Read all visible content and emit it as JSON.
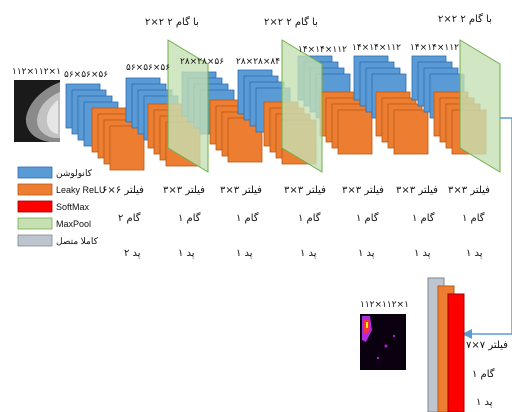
{
  "colors": {
    "conv": "#5b9bd5",
    "conv_edge": "#2f6db0",
    "leaky": "#ed7d31",
    "leaky_edge": "#b65a17",
    "softmax": "#ff0000",
    "softmax_edge": "#a00000",
    "maxpool": "#c6e0b4",
    "maxpool_edge": "#70ad47",
    "fc": "#bfc5ce",
    "fc_edge": "#7f8791",
    "arrow": "#5b9bd5"
  },
  "input": {
    "size_label": "۱۱۲×۱۱۲×۱"
  },
  "output": {
    "size_label": "۱۱۲×۱۱۲×۱"
  },
  "blocks": [
    {
      "size_label": "۵۶×۵۶×۵۶",
      "filter": "فیلتر  ۶×۶",
      "stride": "گام  ۲",
      "pad": "پد  ۲"
    },
    {
      "size_label": "۵۶×۵۶×۵۶",
      "filter": "فیلتر  ۳×۳",
      "stride": "گام  ۱",
      "pad": "پد  ۱"
    },
    {
      "size_label": "۲۸×۲۸×۵۶",
      "filter": "فیلتر  ۳×۳",
      "stride": "گام  ۱",
      "pad": "پد  ۱"
    },
    {
      "size_label": "۲۸×۲۸×۸۴",
      "filter": "فیلتر  ۳×۳",
      "stride": "گام  ۱",
      "pad": "پد  ۱"
    },
    {
      "size_label": "۱۴×۱۴×۱۱۲",
      "filter": "فیلتر  ۳×۳",
      "stride": "گام  ۱",
      "pad": "پد  ۱"
    },
    {
      "size_label": "۱۴×۱۴×۱۱۲",
      "filter": "فیلتر  ۳×۳",
      "stride": "گام  ۱",
      "pad": "پد  ۱"
    },
    {
      "size_label": "۱۴×۱۴×۱۱۲",
      "filter": "فیلتر  ۳×۳",
      "stride": "گام  ۱",
      "pad": "پد  ۱"
    }
  ],
  "pool_labels": [
    "۲×۲ با گام ۲",
    "۲×۲ با گام ۲",
    "۲×۲ با گام ۲"
  ],
  "final": {
    "filter": "فیلتر  ۷×۷",
    "stride": "گام  ۱",
    "pad": "پد  ۱"
  },
  "legend": [
    {
      "label": "کانولوشن",
      "color_key": "conv"
    },
    {
      "label": "Leaky ReLU",
      "color_key": "leaky"
    },
    {
      "label": "SoftMax",
      "color_key": "softmax"
    },
    {
      "label": "MaxPool",
      "color_key": "maxpool"
    },
    {
      "label": "کاملا متصل",
      "color_key": "fc"
    }
  ]
}
